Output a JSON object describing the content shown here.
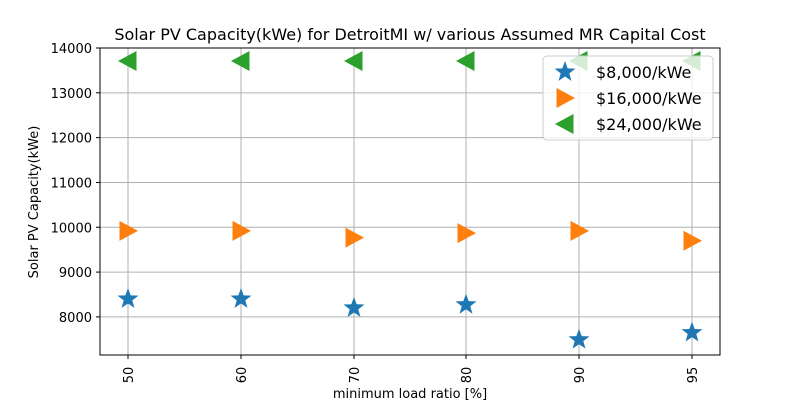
{
  "chart_data": {
    "type": "scatter",
    "title": "Solar PV Capacity(kWe) for DetroitMI w/ various Assumed MR Capital Cost",
    "xlabel": "minimum load ratio [%]",
    "ylabel": "Solar PV Capacity(kWe)",
    "categories": [
      "50",
      "60",
      "70",
      "80",
      "90",
      "95"
    ],
    "ylim": [
      7150,
      14000
    ],
    "yticks": [
      8000,
      9000,
      10000,
      11000,
      12000,
      13000,
      14000
    ],
    "grid": true,
    "legend_position": "top-right",
    "series": [
      {
        "name": "$8,000/kWe",
        "marker": "star",
        "color": "#1f77b4",
        "values": [
          8400,
          8400,
          8200,
          8270,
          7490,
          7650
        ]
      },
      {
        "name": "$16,000/kWe",
        "marker": "triangle-right",
        "color": "#ff7f0e",
        "values": [
          9920,
          9920,
          9770,
          9870,
          9920,
          9700
        ]
      },
      {
        "name": "$24,000/kWe",
        "marker": "triangle-left",
        "color": "#2ca02c",
        "values": [
          13710,
          13710,
          13710,
          13710,
          13710,
          13710
        ]
      }
    ]
  }
}
